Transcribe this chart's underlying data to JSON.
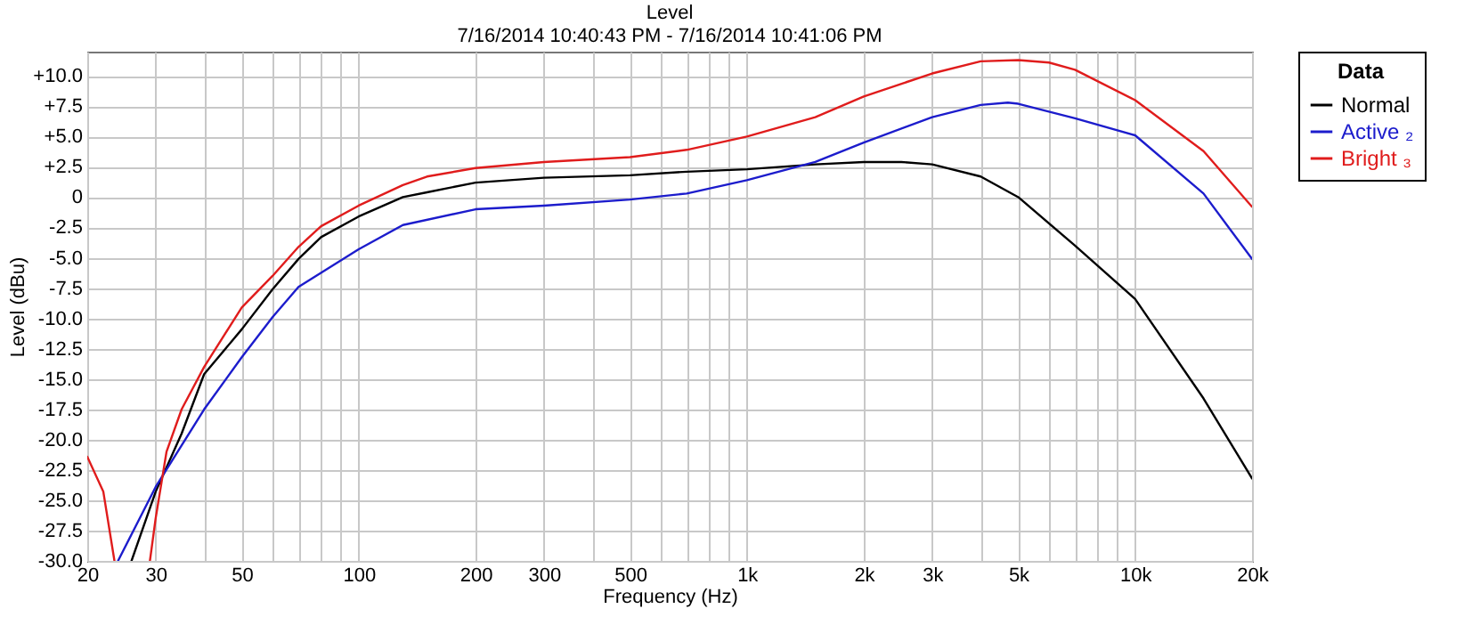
{
  "chart_data": {
    "type": "line",
    "title": "Level",
    "subtitle": "7/16/2014 10:40:43 PM -    7/16/2014 10:41:06 PM",
    "xlabel": "Frequency (Hz)",
    "ylabel": "Level (dBu)",
    "legend_title": "Data",
    "log": "x",
    "grid": true,
    "legend": "top right",
    "line_style": "solid",
    "xlim": [
      20,
      20000
    ],
    "ylim": [
      -30,
      12
    ],
    "xticks": [
      20,
      30,
      {
        "value": 40,
        "label": null
      },
      50,
      {
        "value": 60,
        "label": null
      },
      {
        "value": 70,
        "label": null
      },
      {
        "value": 80,
        "label": null
      },
      {
        "value": 90,
        "label": null
      },
      100,
      200,
      300,
      {
        "value": 400,
        "label": null
      },
      500,
      {
        "value": 600,
        "label": null
      },
      {
        "value": 700,
        "label": null
      },
      {
        "value": 800,
        "label": null
      },
      {
        "value": 900,
        "label": null
      },
      {
        "value": 1000,
        "label": "1k"
      },
      {
        "value": 2000,
        "label": "2k"
      },
      {
        "value": 3000,
        "label": "3k"
      },
      {
        "value": 4000,
        "label": null
      },
      {
        "value": 5000,
        "label": "5k"
      },
      {
        "value": 6000,
        "label": null
      },
      {
        "value": 7000,
        "label": null
      },
      {
        "value": 8000,
        "label": null
      },
      {
        "value": 9000,
        "label": null
      },
      {
        "value": 10000,
        "label": "10k"
      },
      {
        "value": 20000,
        "label": "20k"
      }
    ],
    "yticks": [
      {
        "value": 10,
        "label": "+10.0"
      },
      {
        "value": 7.5,
        "label": "+7.5"
      },
      {
        "value": 5,
        "label": "+5.0"
      },
      {
        "value": 2.5,
        "label": "+2.5"
      },
      0,
      -2.5,
      {
        "value": -5,
        "label": "-5.0"
      },
      -7.5,
      {
        "value": -10,
        "label": "-10.0"
      },
      -12.5,
      {
        "value": -15,
        "label": "-15.0"
      },
      -17.5,
      {
        "value": -20,
        "label": "-20.0"
      },
      -22.5,
      {
        "value": -25,
        "label": "-25.0"
      },
      -27.5,
      {
        "value": -30,
        "label": "-30.0"
      }
    ],
    "series": [
      {
        "name": "Normal",
        "color": "#000000",
        "x": [
          26,
          30,
          35,
          40,
          50,
          60,
          70,
          80,
          100,
          130,
          150,
          200,
          300,
          500,
          700,
          1000,
          1500,
          2000,
          2500,
          3000,
          4000,
          5000,
          7000,
          10000,
          15000,
          20000
        ],
        "values": [
          -30,
          -24.3,
          -19.5,
          -14.6,
          -10.9,
          -7.6,
          -5.1,
          -3.3,
          -1.6,
          0,
          0.4,
          1.2,
          1.6,
          1.8,
          2.1,
          2.3,
          2.7,
          2.9,
          2.9,
          2.7,
          1.7,
          0,
          -4,
          -8.4,
          -16.6,
          -23.2
        ]
      },
      {
        "name": "Active ₂",
        "color": "#1c1ccc",
        "x": [
          24,
          30,
          40,
          50,
          60,
          70,
          100,
          130,
          200,
          300,
          500,
          700,
          1000,
          1500,
          2000,
          3000,
          4000,
          4700,
          5000,
          7000,
          10000,
          15000,
          20000
        ],
        "values": [
          -30,
          -23.9,
          -17.5,
          -13.2,
          -9.9,
          -7.4,
          -4.3,
          -2.3,
          -1,
          -0.7,
          -0.2,
          0.3,
          1.4,
          2.9,
          4.5,
          6.6,
          7.6,
          7.8,
          7.7,
          6.5,
          5.1,
          0.3,
          -5.1
        ]
      },
      {
        "name": "Bright ₃",
        "color": "#e01c1c",
        "x": [
          20,
          22,
          23.5,
          26,
          29,
          30,
          32,
          35,
          40,
          50,
          60,
          70,
          80,
          100,
          130,
          150,
          200,
          300,
          500,
          700,
          1000,
          1500,
          2000,
          3000,
          4000,
          5000,
          6000,
          7000,
          10000,
          15000,
          20000
        ],
        "values": [
          -21.4,
          -24.3,
          -30,
          null,
          -30,
          -26.5,
          -21,
          -17.5,
          -14,
          -9.1,
          -6.5,
          -4.1,
          -2.4,
          -0.7,
          1,
          1.7,
          2.4,
          2.9,
          3.3,
          3.9,
          5,
          6.6,
          8.3,
          10.2,
          11.2,
          11.3,
          11.1,
          10.5,
          8,
          3.8,
          -0.8
        ]
      }
    ]
  }
}
